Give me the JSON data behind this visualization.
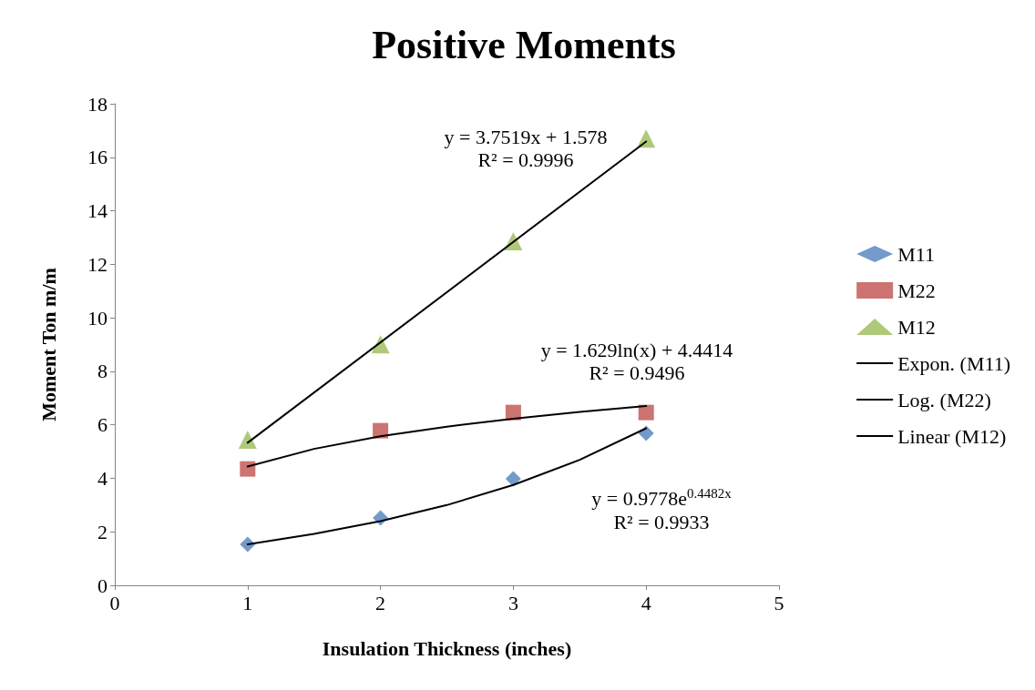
{
  "chart_data": {
    "type": "scatter",
    "title": "Positive Moments",
    "xlabel": "Insulation Thickness (inches)",
    "ylabel": "Moment Ton m/m",
    "x": [
      1,
      2,
      3,
      4
    ],
    "series": [
      {
        "name": "M11",
        "color": "#4f81bd",
        "marker": "diamond",
        "values": [
          1.53,
          2.52,
          3.98,
          5.68
        ]
      },
      {
        "name": "M22",
        "color": "#c0504d",
        "marker": "square",
        "values": [
          4.35,
          5.78,
          6.46,
          6.46
        ]
      },
      {
        "name": "M12",
        "color": "#9bbb59",
        "marker": "triangle",
        "values": [
          5.44,
          9.01,
          12.86,
          16.7
        ]
      },
      {
        "name": "Expon. (M11)",
        "type": "line",
        "color": "#000000",
        "marker": "none",
        "x": [
          1,
          1.5,
          2,
          2.5,
          3,
          3.5,
          4
        ],
        "values": [
          1.53,
          1.92,
          2.4,
          3.0,
          3.75,
          4.69,
          5.87
        ]
      },
      {
        "name": "Log. (M22)",
        "type": "line",
        "color": "#000000",
        "marker": "none",
        "x": [
          1,
          1.5,
          2,
          2.5,
          3,
          3.5,
          4
        ],
        "values": [
          4.44,
          5.1,
          5.57,
          5.93,
          6.23,
          6.48,
          6.7
        ]
      },
      {
        "name": "Linear (M12)",
        "type": "line",
        "color": "#000000",
        "marker": "none",
        "x": [
          1,
          4
        ],
        "values": [
          5.33,
          16.59
        ]
      }
    ],
    "annotations": [
      "y = 3.7519x + 1.578\nR² = 0.9996",
      "y = 1.629ln(x) + 4.4414\nR² = 0.9496",
      "y = 0.9778e$^{0.4482x}$\nR² = 0.9933"
    ],
    "xlim": [
      0,
      5
    ],
    "xticks": [
      0,
      1,
      2,
      3,
      4,
      5
    ],
    "ylim": [
      0,
      18
    ],
    "yticks": [
      0,
      2,
      4,
      6,
      8,
      10,
      12,
      14,
      16,
      18
    ],
    "grid": false,
    "legend": "right",
    "line_style": "solid"
  }
}
